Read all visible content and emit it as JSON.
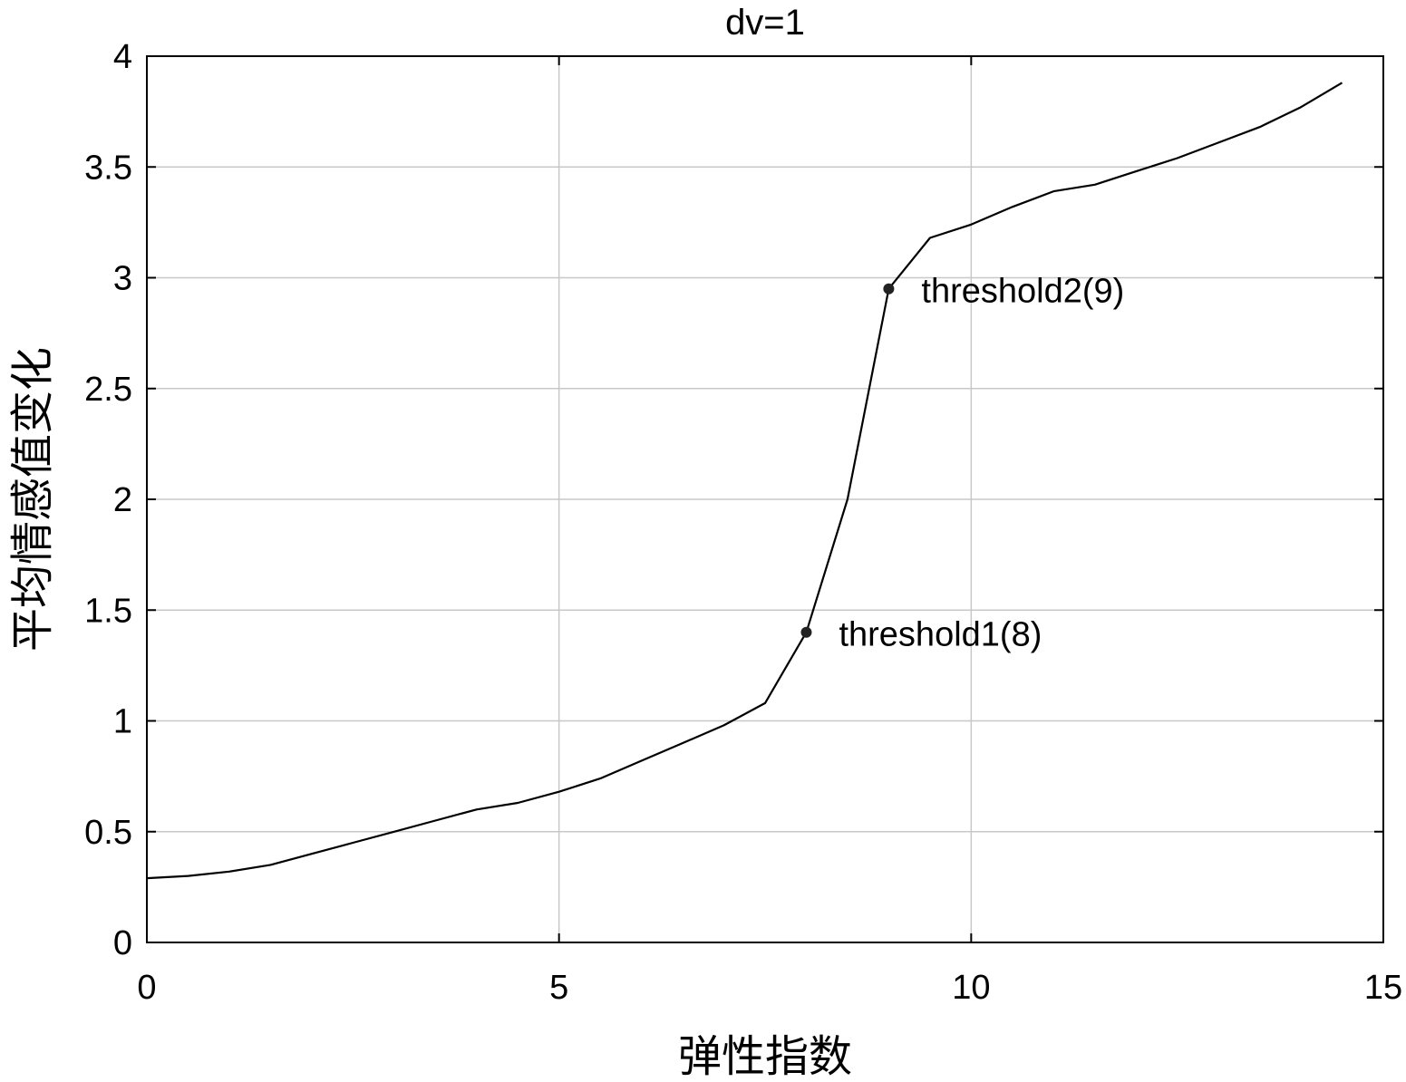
{
  "chart_data": {
    "type": "line",
    "title": "dv=1",
    "xlabel": "弹性指数",
    "ylabel": "平均情感值变化",
    "xlim": [
      0,
      15
    ],
    "ylim": [
      0,
      4
    ],
    "xticks": [
      0,
      5,
      10,
      15
    ],
    "xtick_labels": [
      "0",
      "5",
      "10",
      "15"
    ],
    "yticks": [
      0,
      0.5,
      1,
      1.5,
      2,
      2.5,
      3,
      3.5,
      4
    ],
    "ytick_labels": [
      "0",
      "0.5",
      "1",
      "1.5",
      "2",
      "2.5",
      "3",
      "3.5",
      "4"
    ],
    "grid": true,
    "series": [
      {
        "x": [
          0,
          0.5,
          1,
          1.5,
          2,
          2.5,
          3,
          3.5,
          4,
          4.5,
          5,
          5.5,
          6,
          6.5,
          7,
          7.5,
          8,
          8.5,
          9,
          9.5,
          10,
          10.5,
          11,
          11.5,
          12,
          12.5,
          13,
          13.5,
          14,
          14.5
        ],
        "y": [
          0.29,
          0.3,
          0.32,
          0.35,
          0.4,
          0.45,
          0.5,
          0.55,
          0.6,
          0.63,
          0.68,
          0.74,
          0.82,
          0.9,
          0.98,
          1.08,
          1.4,
          2.0,
          2.95,
          3.18,
          3.24,
          3.32,
          3.39,
          3.42,
          3.48,
          3.54,
          3.61,
          3.68,
          3.77,
          3.88
        ],
        "color": "#000000"
      }
    ],
    "annotations": [
      {
        "label": "threshold1(8)",
        "x": 8,
        "y": 1.4
      },
      {
        "label": "threshold2(9)",
        "x": 9,
        "y": 2.95
      }
    ]
  }
}
